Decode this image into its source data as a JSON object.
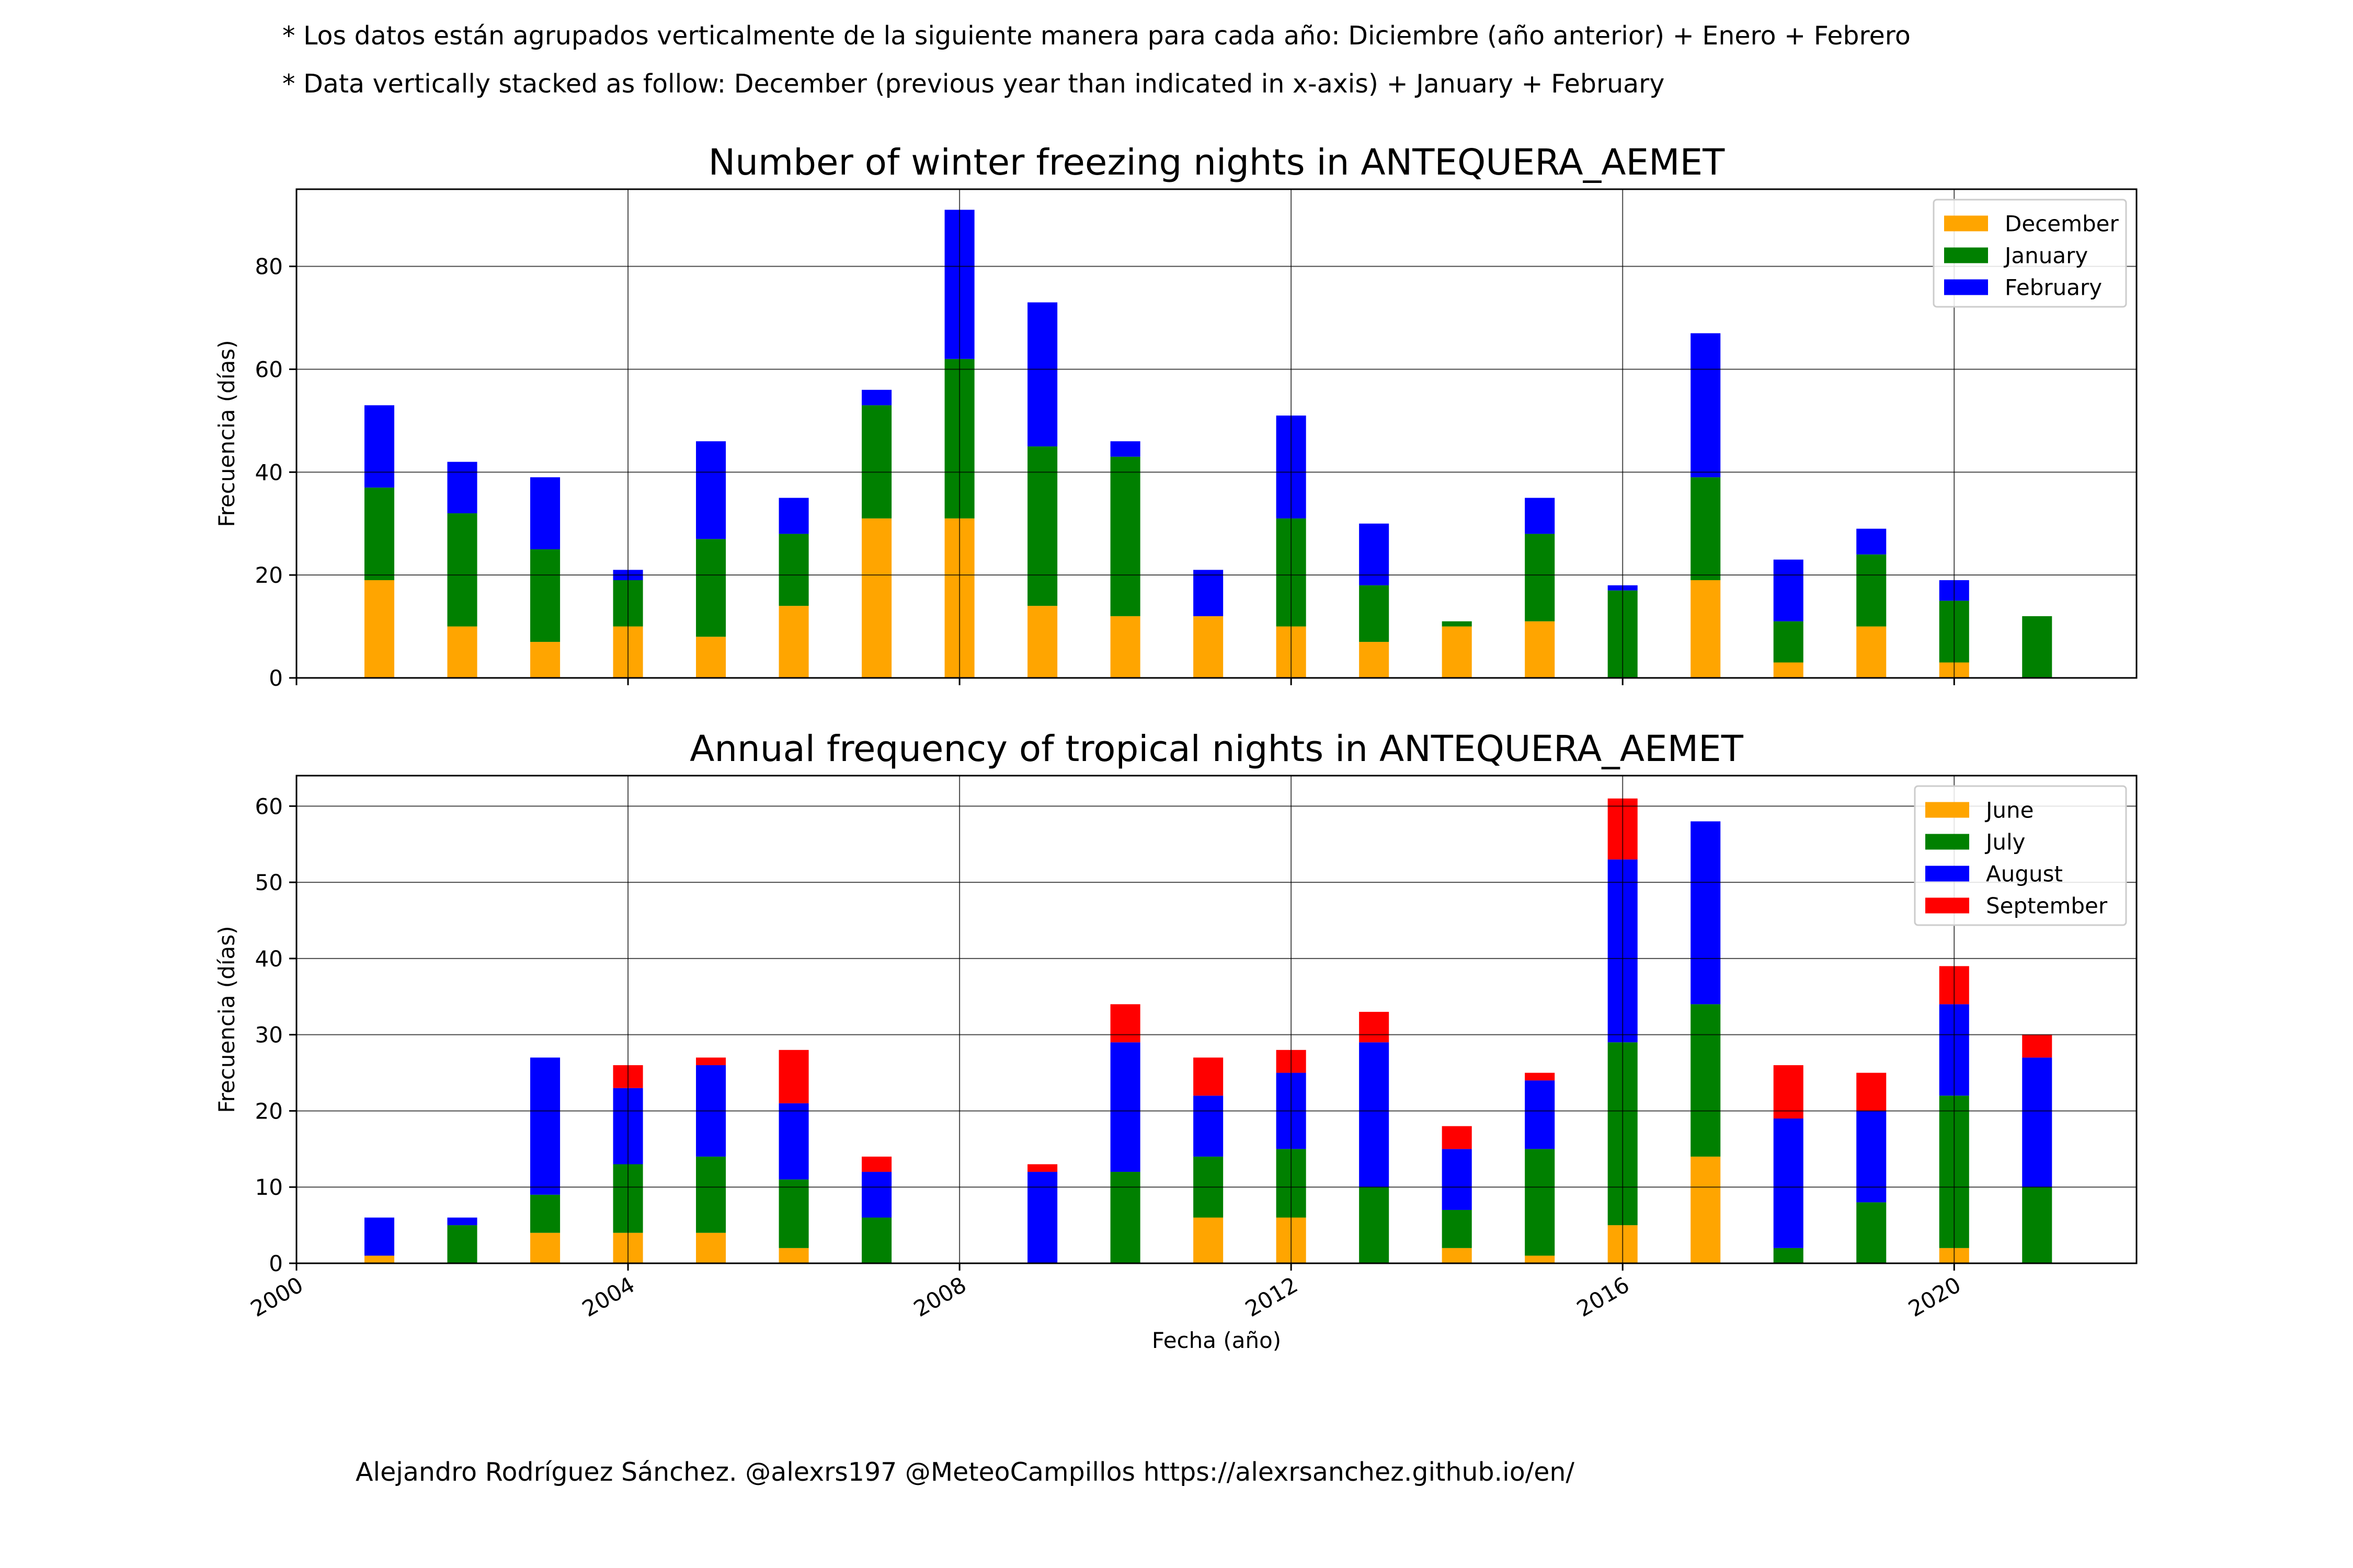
{
  "notes": [
    "* Los datos están agrupados verticalmente de la siguiente manera para cada año: Diciembre (año anterior) + Enero  + Febrero",
    "* Data vertically stacked as follow: December (previous year than indicated in x-axis) + January  + February"
  ],
  "footer": "Alejandro Rodríguez Sánchez. @alexrs197 @MeteoCampillos   https://alexrsanchez.github.io/en/",
  "chart_data": [
    {
      "type": "bar",
      "stacked": true,
      "title": "Number of winter freezing nights in ANTEQUERA_AEMET",
      "xlabel": "",
      "ylabel": "Frecuencia (días)",
      "x": [
        2001,
        2002,
        2003,
        2004,
        2005,
        2006,
        2007,
        2008,
        2009,
        2010,
        2011,
        2012,
        2013,
        2014,
        2015,
        2016,
        2017,
        2018,
        2019,
        2020,
        2021
      ],
      "xlim": [
        2000,
        2022.2
      ],
      "ylim": [
        0,
        95
      ],
      "xticks": [
        2000,
        2004,
        2008,
        2012,
        2016,
        2020
      ],
      "yticks": [
        0,
        20,
        40,
        60,
        80
      ],
      "grid": true,
      "legend_position": "top-right",
      "series": [
        {
          "name": "December",
          "color": "#ffa500",
          "values": [
            19,
            10,
            7,
            10,
            8,
            14,
            31,
            31,
            14,
            12,
            12,
            10,
            7,
            10,
            11,
            0,
            19,
            3,
            10,
            3,
            0
          ]
        },
        {
          "name": "January",
          "color": "#008000",
          "values": [
            18,
            22,
            18,
            9,
            19,
            14,
            22,
            31,
            31,
            31,
            0,
            21,
            11,
            1,
            17,
            17,
            20,
            8,
            14,
            12,
            12
          ]
        },
        {
          "name": "February",
          "color": "#0000ff",
          "values": [
            16,
            10,
            14,
            2,
            19,
            7,
            3,
            29,
            28,
            3,
            9,
            20,
            12,
            0,
            7,
            1,
            28,
            12,
            5,
            4,
            0
          ]
        }
      ]
    },
    {
      "type": "bar",
      "stacked": true,
      "title": "Annual frequency of tropical nights in ANTEQUERA_AEMET",
      "xlabel": "Fecha (año)",
      "ylabel": "Frecuencia (días)",
      "x": [
        2001,
        2002,
        2003,
        2004,
        2005,
        2006,
        2007,
        2008,
        2009,
        2010,
        2011,
        2012,
        2013,
        2014,
        2015,
        2016,
        2017,
        2018,
        2019,
        2020,
        2021
      ],
      "xlim": [
        2000,
        2022.2
      ],
      "ylim": [
        0,
        64
      ],
      "xticks": [
        2000,
        2004,
        2008,
        2012,
        2016,
        2020
      ],
      "yticks": [
        0,
        10,
        20,
        30,
        40,
        50,
        60
      ],
      "grid": true,
      "legend_position": "top-right",
      "series": [
        {
          "name": "June",
          "color": "#ffa500",
          "values": [
            1,
            0,
            4,
            4,
            4,
            2,
            0,
            0,
            0,
            0,
            6,
            6,
            0,
            2,
            1,
            5,
            14,
            0,
            0,
            2,
            0
          ]
        },
        {
          "name": "July",
          "color": "#008000",
          "values": [
            0,
            5,
            5,
            9,
            10,
            9,
            6,
            0,
            0,
            12,
            8,
            9,
            10,
            5,
            14,
            24,
            20,
            2,
            8,
            20,
            10
          ]
        },
        {
          "name": "August",
          "color": "#0000ff",
          "values": [
            5,
            1,
            18,
            10,
            12,
            10,
            6,
            0,
            12,
            17,
            8,
            10,
            19,
            8,
            9,
            24,
            24,
            17,
            12,
            12,
            17
          ]
        },
        {
          "name": "September",
          "color": "#ff0000",
          "values": [
            0,
            0,
            0,
            3,
            1,
            7,
            2,
            0,
            1,
            5,
            5,
            3,
            4,
            3,
            1,
            8,
            0,
            7,
            5,
            5,
            3
          ]
        }
      ]
    }
  ]
}
